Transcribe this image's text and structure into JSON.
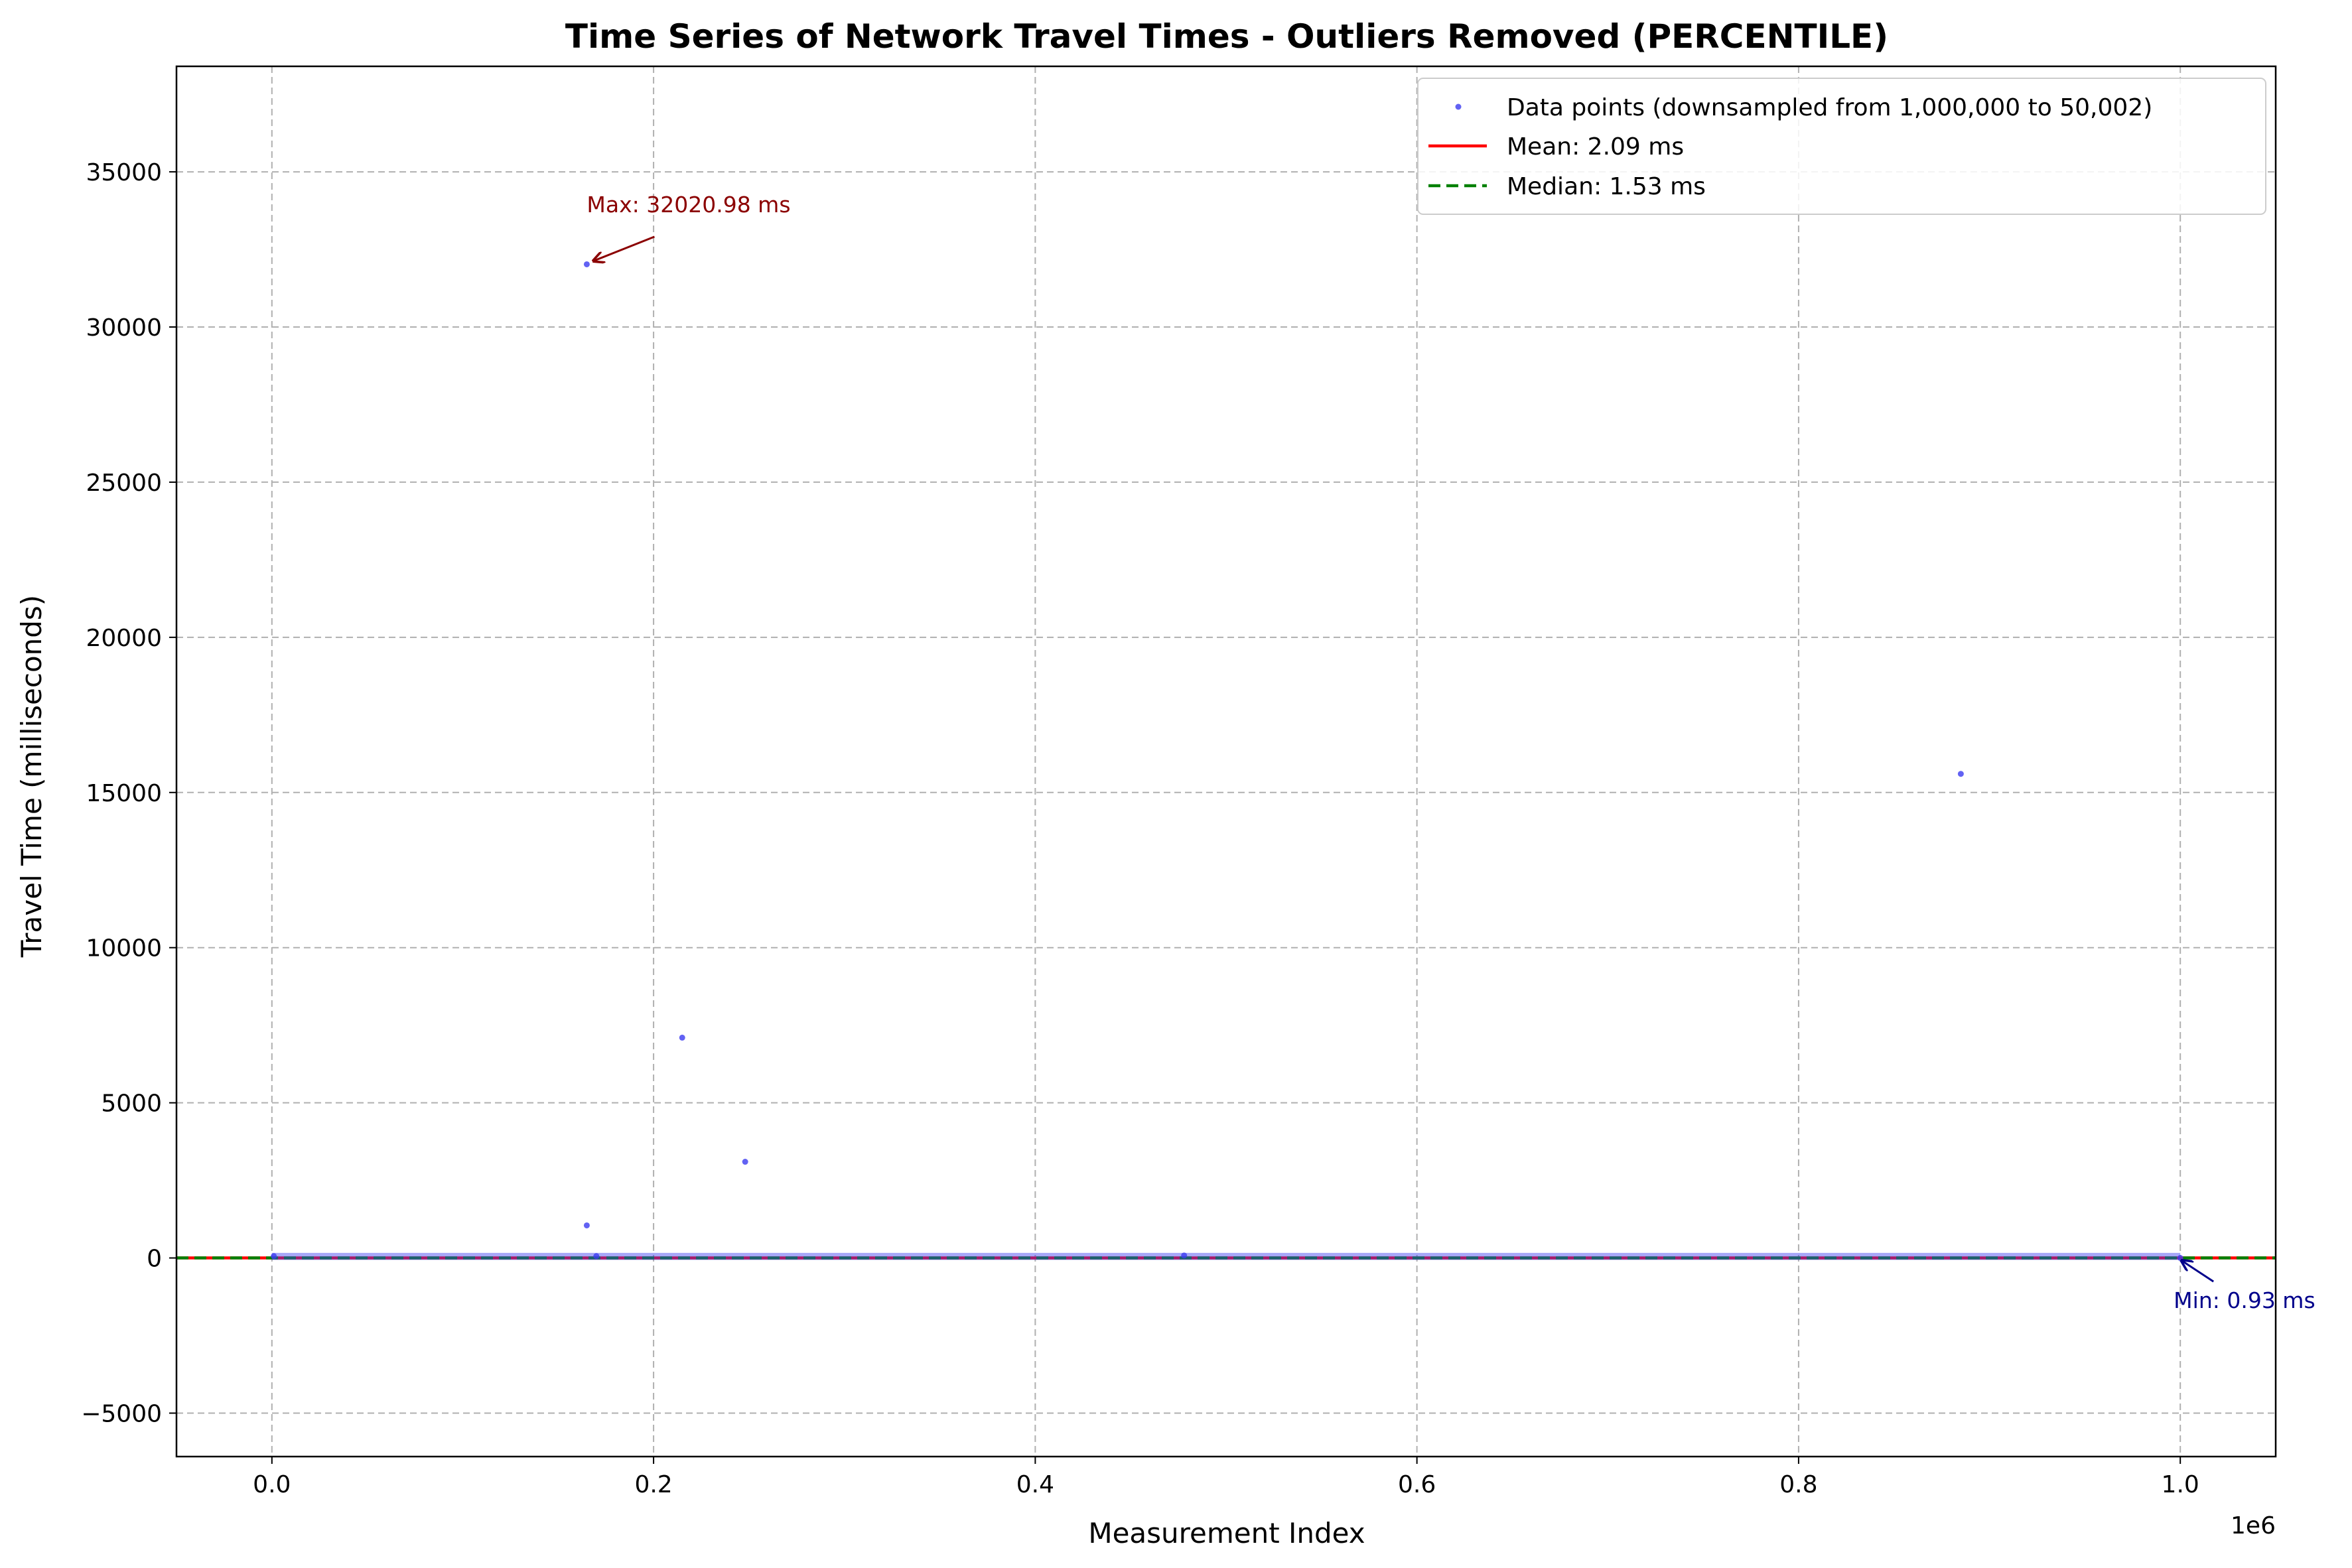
{
  "chart_data": {
    "type": "scatter",
    "title": "Time Series of Network Travel Times - Outliers Removed (PERCENTILE)",
    "xlabel": "Measurement Index",
    "ylabel": "Travel Time (milliseconds)",
    "x_offset_label": "1e6",
    "xlim": [
      -50000,
      1050000
    ],
    "ylim": [
      -6400,
      38400
    ],
    "x_ticks": [
      0,
      200000,
      400000,
      600000,
      800000,
      1000000
    ],
    "x_tick_labels": [
      "0.0",
      "0.2",
      "0.4",
      "0.6",
      "0.8",
      "1.0"
    ],
    "y_ticks": [
      -5000,
      0,
      5000,
      10000,
      15000,
      20000,
      25000,
      30000,
      35000
    ],
    "y_tick_labels": [
      "−5000",
      "0",
      "5000",
      "10000",
      "15000",
      "20000",
      "25000",
      "30000",
      "35000"
    ],
    "grid": true,
    "legend_position": "top-right",
    "colors": {
      "points": "#3b3bf0",
      "mean": "#ff0000",
      "median": "#008000",
      "max_annotation": "#8b0000",
      "min_annotation": "#00008b",
      "grid": "#b0b0b0"
    },
    "series": [
      {
        "name": "Data points (downsampled from 1,000,000 to 50,002)",
        "kind": "scatter",
        "points": [
          {
            "x": 1000,
            "y": 60
          },
          {
            "x": 165000,
            "y": 32020.98
          },
          {
            "x": 165000,
            "y": 1050
          },
          {
            "x": 170000,
            "y": 60
          },
          {
            "x": 215000,
            "y": 7100
          },
          {
            "x": 248000,
            "y": 3100
          },
          {
            "x": 478000,
            "y": 80
          },
          {
            "x": 885000,
            "y": 15600
          },
          {
            "x": 1000000,
            "y": 0.93
          }
        ],
        "baseline_band": {
          "x_from": 0,
          "x_to": 1000000,
          "y_from": 0,
          "y_to": 100
        }
      },
      {
        "name": "Mean: 2.09 ms",
        "kind": "hline",
        "y": 2.09,
        "style": "solid"
      },
      {
        "name": "Median: 1.53 ms",
        "kind": "hline",
        "y": 1.53,
        "style": "dashed"
      }
    ],
    "annotations": [
      {
        "label": "Max: 32020.98 ms",
        "x": 165000,
        "y": 32020.98,
        "text_x": 165000,
        "text_y": 33700
      },
      {
        "label": "Min: 0.93 ms",
        "x": 1000000,
        "y": 0.93,
        "text_x": 1000000,
        "text_y": -1400
      }
    ]
  }
}
